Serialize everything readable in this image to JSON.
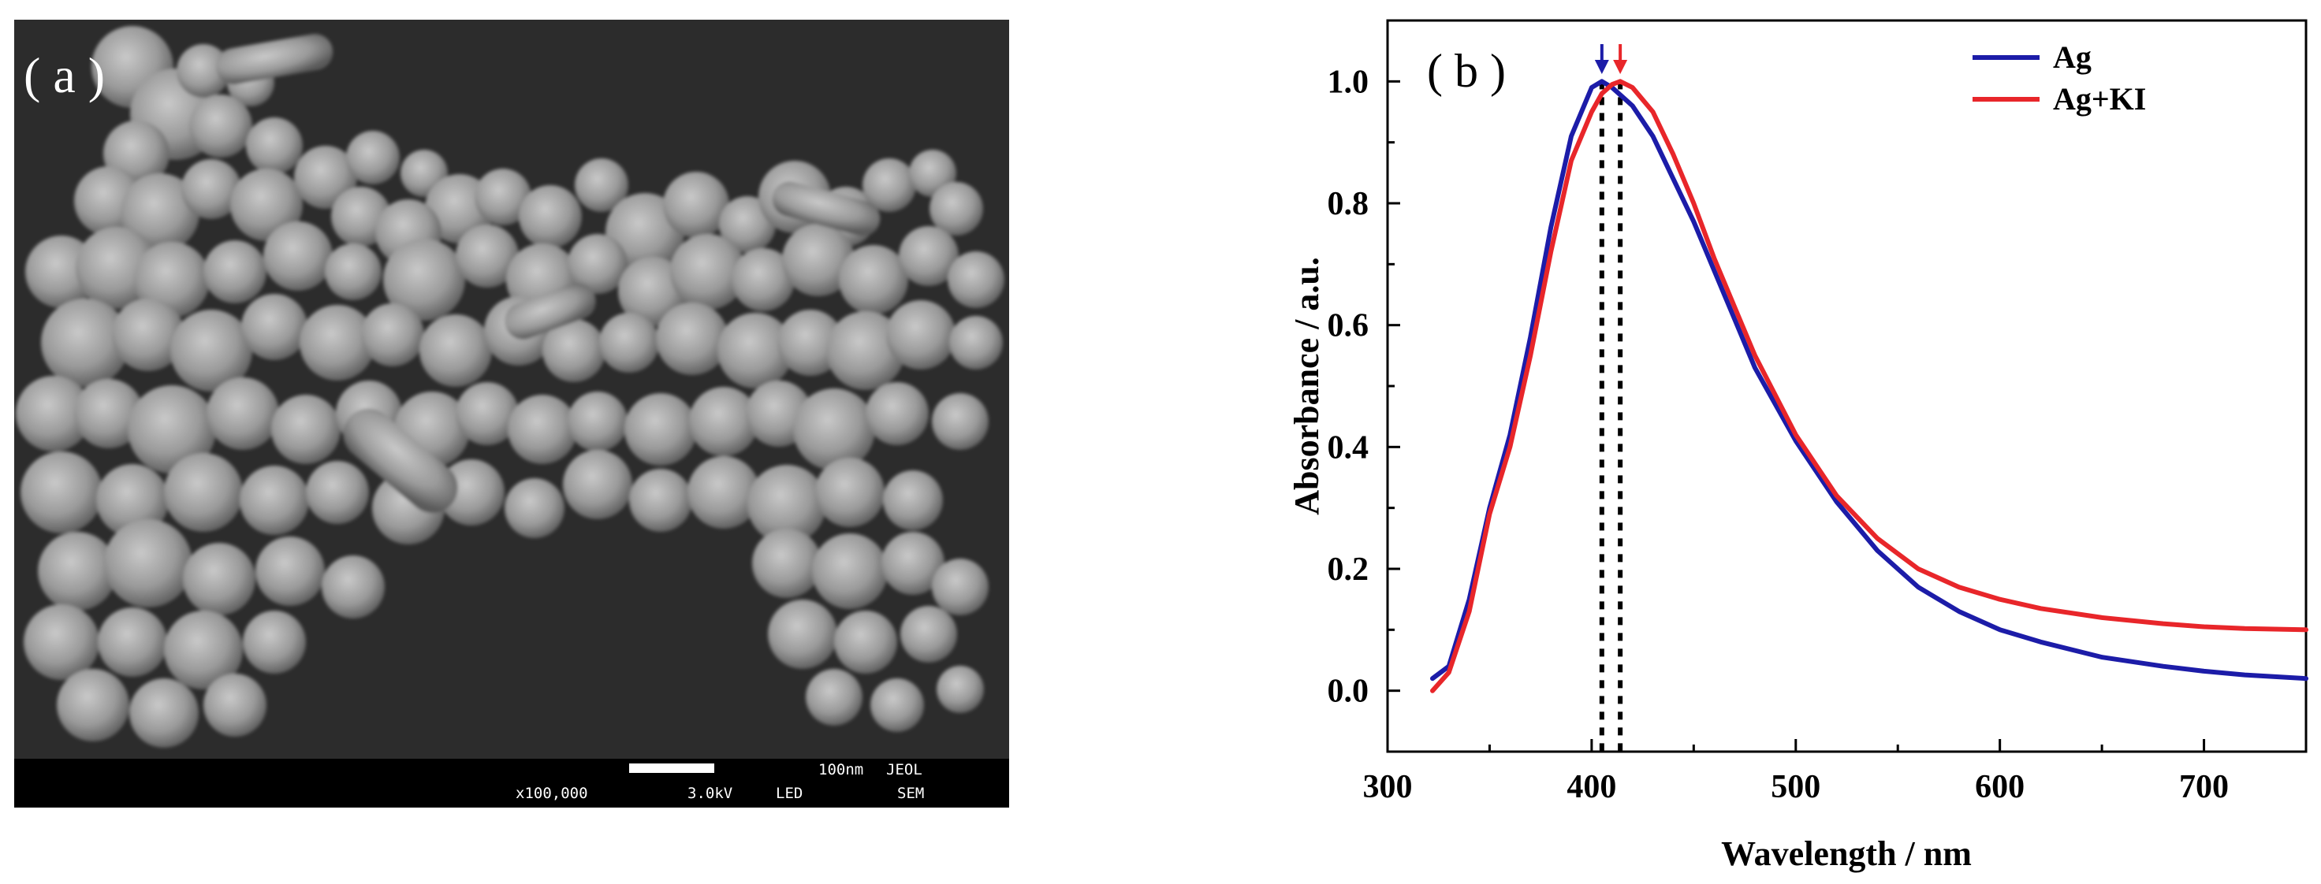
{
  "panel_a": {
    "label": "( a )",
    "scalebar_length_text": "100nm",
    "brand": "JEOL",
    "magnification": "x100,000",
    "voltage": "3.0kV",
    "detector": "LED",
    "mode": "SEM"
  },
  "panel_b": {
    "label": "( b )",
    "colors": {
      "Ag": "#1c1ca8",
      "Ag+KI": "#e8262a"
    },
    "peak_markers": [
      {
        "x": 405,
        "color": "#1c1ca8"
      },
      {
        "x": 414,
        "color": "#e8262a"
      }
    ]
  },
  "chart_data": {
    "type": "line",
    "title": "",
    "xlabel": "Wavelength / nm",
    "ylabel": "Absorbance / a.u.",
    "xlim": [
      300,
      750
    ],
    "ylim": [
      -0.1,
      1.1
    ],
    "xticks": [
      "300",
      "400",
      "500",
      "600",
      "700"
    ],
    "yticks": [
      "0.0",
      "0.2",
      "0.4",
      "0.6",
      "0.8",
      "1.0"
    ],
    "legend_position": "top-right",
    "grid": false,
    "series": [
      {
        "name": "Ag",
        "x": [
          322,
          330,
          340,
          350,
          360,
          370,
          380,
          390,
          400,
          405,
          410,
          420,
          430,
          440,
          450,
          460,
          470,
          480,
          500,
          520,
          540,
          560,
          580,
          600,
          620,
          650,
          680,
          700,
          720,
          750
        ],
        "y": [
          0.02,
          0.04,
          0.15,
          0.3,
          0.42,
          0.58,
          0.76,
          0.91,
          0.99,
          1.0,
          0.99,
          0.96,
          0.91,
          0.84,
          0.77,
          0.69,
          0.61,
          0.53,
          0.41,
          0.31,
          0.23,
          0.17,
          0.13,
          0.1,
          0.08,
          0.055,
          0.04,
          0.032,
          0.026,
          0.02
        ]
      },
      {
        "name": "Ag+KI",
        "x": [
          322,
          330,
          340,
          350,
          360,
          370,
          380,
          390,
          400,
          405,
          410,
          414,
          420,
          430,
          440,
          450,
          460,
          470,
          480,
          500,
          520,
          540,
          560,
          580,
          600,
          620,
          650,
          680,
          700,
          720,
          750
        ],
        "y": [
          0.0,
          0.03,
          0.13,
          0.29,
          0.4,
          0.55,
          0.72,
          0.87,
          0.95,
          0.98,
          0.995,
          1.0,
          0.99,
          0.95,
          0.88,
          0.8,
          0.71,
          0.63,
          0.55,
          0.42,
          0.32,
          0.25,
          0.2,
          0.17,
          0.15,
          0.135,
          0.12,
          0.11,
          0.105,
          0.102,
          0.1
        ]
      }
    ]
  }
}
